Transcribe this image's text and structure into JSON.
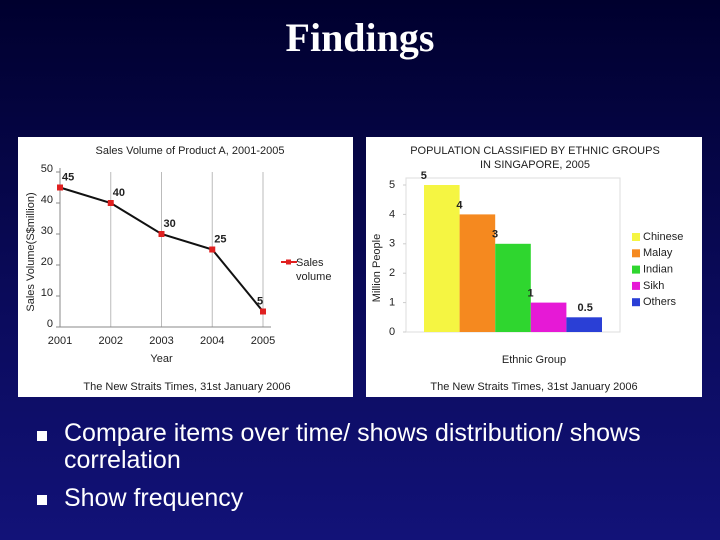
{
  "title": "Findings",
  "bullets": [
    "Compare items over time/ shows distribution/ shows correlation",
    "Show frequency"
  ],
  "chart_data": [
    {
      "type": "line",
      "title": "Sales Volume of Product A, 2001-2005",
      "x": [
        2001,
        2002,
        2003,
        2004,
        2005
      ],
      "series": [
        {
          "name": "Sales volume",
          "color": "#e02020",
          "values": [
            45,
            40,
            30,
            25,
            5
          ]
        }
      ],
      "xlim": [
        2001,
        2005
      ],
      "xticks": [
        2001,
        2002,
        2003,
        2004,
        2005
      ],
      "ylim": [
        0,
        50
      ],
      "yticks": [
        0,
        10,
        20,
        30,
        40,
        50
      ],
      "xlabel": "Year",
      "ylabel": "Sales Volume(S$million)",
      "grid": "x",
      "legend": "right",
      "source": "The New Straits Times, 31st January 2006"
    },
    {
      "type": "bar",
      "title": "POPULATION CLASSIFIED BY ETHNIC GROUPS IN SINGAPORE, 2005",
      "categories": [
        "Chinese",
        "Malay",
        "Indian",
        "Sikh",
        "Others"
      ],
      "values": [
        5,
        4,
        3,
        1,
        0.5
      ],
      "colors": [
        "#f5f542",
        "#f5891f",
        "#2fd62f",
        "#e619d6",
        "#2a3fd6"
      ],
      "ylim": [
        0,
        5
      ],
      "yticks": [
        0,
        1,
        2,
        3,
        4,
        5
      ],
      "xlabel": "Ethnic Group",
      "ylabel": "Million People",
      "legend": "right",
      "source": "The New Straits Times, 31st January 2006"
    }
  ]
}
